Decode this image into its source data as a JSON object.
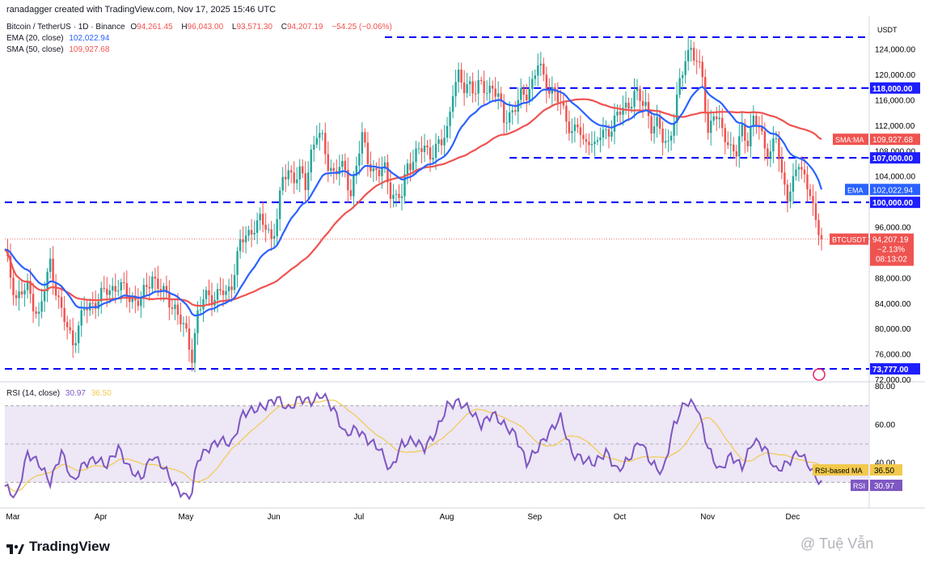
{
  "header": {
    "created_by": "ranadagger created with TradingView.com, Nov 17, 2025 15:46 UTC"
  },
  "legend": {
    "symbol": "Bitcoin / TetherUS · 1D · Binance",
    "ohlc": {
      "O": "94,261.45",
      "H": "96,043.00",
      "L": "93,571.30",
      "C": "94,207.19"
    },
    "change": "−54.25 (−0.06%)",
    "ema_label": "EMA (20, close)",
    "ema_value": "102,022.94",
    "sma_label": "SMA (50, close)",
    "sma_value": "109,927.68",
    "rsi_label": "RSI (14, close)",
    "rsi_value": "30.97",
    "rsi_ma_value": "36.50"
  },
  "colors": {
    "up": "#26a69a",
    "down": "#ef5350",
    "ema": "#2962ff",
    "sma": "#ef5350",
    "rsi": "#7e57c2",
    "rsi_ma": "#f2c94c",
    "level_lines": "#0000ff",
    "rsi_band": "#ede7f6"
  },
  "chart_data": [
    {
      "type": "candlestick",
      "title": "Bitcoin / TetherUS · 1D · Binance",
      "currency_label": "USDT",
      "ylim": [
        72000,
        126000
      ],
      "y_ticks": [
        "124,000.00",
        "120,000.00",
        "116,000.00",
        "112,000.00",
        "108,000.00",
        "104,000.00",
        "96,000.00",
        "88,000.00",
        "84,000.00",
        "80,000.00",
        "76,000.00",
        "72,000.00"
      ],
      "x_labels": [
        "Mar",
        "Apr",
        "May",
        "Jun",
        "Jul",
        "Aug",
        "Sep",
        "Oct",
        "Nov",
        "Dec"
      ],
      "horizontal_levels": [
        {
          "value": 126000,
          "label": "",
          "x_from": "mid-Jul"
        },
        {
          "value": 118000,
          "label": "118,000.00",
          "x_from": "late-Aug"
        },
        {
          "value": 107000,
          "label": "107,000.00",
          "x_from": "late-Aug"
        },
        {
          "value": 100000,
          "label": "100,000.00",
          "x_from": "start"
        },
        {
          "value": 73777,
          "label": "73,777.00",
          "x_from": "start"
        }
      ],
      "price_labels": [
        {
          "name": "SMA:MA",
          "value": "109,927.68",
          "y": 109927.68
        },
        {
          "name": "EMA",
          "value": "102,022.94",
          "y": 102022.94
        },
        {
          "name": "BTCUSDT",
          "value": "94,207.19",
          "change": "−2.13%",
          "countdown": "08:13:02",
          "y": 94207.19
        }
      ],
      "series": [
        {
          "name": "BTCUSDT",
          "kind": "candles",
          "close_path": [
            [
              0,
              92000
            ],
            [
              4,
              85000
            ],
            [
              8,
              86500
            ],
            [
              12,
              82000
            ],
            [
              16,
              90500
            ],
            [
              20,
              82500
            ],
            [
              24,
              78000
            ],
            [
              28,
              83000
            ],
            [
              32,
              84500
            ],
            [
              36,
              86000
            ],
            [
              40,
              87000
            ],
            [
              44,
              85000
            ],
            [
              48,
              84500
            ],
            [
              52,
              88500
            ],
            [
              56,
              85500
            ],
            [
              60,
              83500
            ],
            [
              64,
              79000
            ],
            [
              66,
              76000
            ],
            [
              68,
              82500
            ],
            [
              70,
              84500
            ],
            [
              72,
              85500
            ],
            [
              74,
              85000
            ],
            [
              76,
              86000
            ],
            [
              78,
              85200
            ],
            [
              80,
              87500
            ],
            [
              83,
              93500
            ],
            [
              86,
              95000
            ],
            [
              88,
              96500
            ],
            [
              90,
              97000
            ],
            [
              92,
              96000
            ],
            [
              94,
              94500
            ],
            [
              96,
              97500
            ],
            [
              98,
              103500
            ],
            [
              100,
              105000
            ],
            [
              102,
              104000
            ],
            [
              104,
              104500
            ],
            [
              106,
              102500
            ],
            [
              108,
              108000
            ],
            [
              110,
              111000
            ],
            [
              112,
              109500
            ],
            [
              114,
              106000
            ],
            [
              116,
              104800
            ],
            [
              118,
              105500
            ],
            [
              120,
              104700
            ],
            [
              122,
              101500
            ],
            [
              124,
              106000
            ],
            [
              126,
              110000
            ],
            [
              128,
              107000
            ],
            [
              130,
              105000
            ],
            [
              132,
              104500
            ],
            [
              134,
              105200
            ],
            [
              136,
              102000
            ],
            [
              138,
              100500
            ],
            [
              140,
              101000
            ],
            [
              142,
              106000
            ],
            [
              144,
              107000
            ],
            [
              146,
              108000
            ],
            [
              148,
              108500
            ],
            [
              150,
              107800
            ],
            [
              152,
              108500
            ],
            [
              154,
              109200
            ],
            [
              156,
              111500
            ],
            [
              158,
              118000
            ],
            [
              160,
              119500
            ],
            [
              162,
              117800
            ],
            [
              164,
              119000
            ],
            [
              166,
              117500
            ],
            [
              168,
              118300
            ],
            [
              170,
              117600
            ],
            [
              172,
              118500
            ],
            [
              174,
              116200
            ],
            [
              176,
              113000
            ],
            [
              178,
              114000
            ],
            [
              180,
              115000
            ],
            [
              182,
              116500
            ],
            [
              184,
              117300
            ],
            [
              186,
              119000
            ],
            [
              188,
              121700
            ],
            [
              190,
              119500
            ],
            [
              192,
              118000
            ],
            [
              194,
              117200
            ],
            [
              196,
              115000
            ],
            [
              198,
              113500
            ],
            [
              200,
              111000
            ],
            [
              202,
              112000
            ],
            [
              204,
              109000
            ],
            [
              206,
              110500
            ],
            [
              208,
              108500
            ],
            [
              210,
              110500
            ],
            [
              212,
              111200
            ],
            [
              214,
              112000
            ],
            [
              216,
              113400
            ],
            [
              218,
              114900
            ],
            [
              220,
              115500
            ],
            [
              222,
              117000
            ],
            [
              224,
              116000
            ],
            [
              226,
              115500
            ],
            [
              228,
              112000
            ],
            [
              230,
              112000
            ],
            [
              232,
              110200
            ],
            [
              234,
              109500
            ],
            [
              236,
              113000
            ],
            [
              238,
              118500
            ],
            [
              240,
              123000
            ],
            [
              242,
              124500
            ],
            [
              244,
              121500
            ],
            [
              246,
              120000
            ],
            [
              248,
              111000
            ],
            [
              250,
              114000
            ],
            [
              252,
              112000
            ],
            [
              254,
              110800
            ],
            [
              256,
              108500
            ],
            [
              258,
              107500
            ],
            [
              260,
              111500
            ],
            [
              262,
              110000
            ],
            [
              264,
              113000
            ],
            [
              266,
              111500
            ],
            [
              268,
              109000
            ],
            [
              270,
              108000
            ],
            [
              272,
              110000
            ],
            [
              274,
              104000
            ],
            [
              276,
              101500
            ],
            [
              278,
              103000
            ],
            [
              280,
              106000
            ],
            [
              282,
              104000
            ],
            [
              284,
              102000
            ],
            [
              286,
              96000
            ],
            [
              288,
              94200
            ]
          ]
        },
        {
          "name": "EMA",
          "value": "102,022.94"
        },
        {
          "name": "SMA",
          "value": "109,927.68"
        }
      ]
    },
    {
      "type": "line",
      "title": "RSI (14, close)",
      "ylim": [
        20,
        80
      ],
      "y_ticks": [
        "80.00",
        "60.00",
        "40.00"
      ],
      "bands": {
        "upper": 70,
        "middle": 50,
        "lower": 30
      },
      "price_labels": [
        {
          "name": "RSI-based MA",
          "value": "36.50"
        },
        {
          "name": "RSI",
          "value": "30.97"
        }
      ],
      "series": [
        {
          "name": "RSI",
          "path": [
            [
              0,
              28
            ],
            [
              4,
              22
            ],
            [
              8,
              45
            ],
            [
              12,
              40
            ],
            [
              16,
              30
            ],
            [
              20,
              46
            ],
            [
              24,
              30
            ],
            [
              28,
              40
            ],
            [
              32,
              42
            ],
            [
              36,
              39
            ],
            [
              40,
              48
            ],
            [
              44,
              37
            ],
            [
              48,
              32
            ],
            [
              52,
              44
            ],
            [
              56,
              38
            ],
            [
              60,
              28
            ],
            [
              64,
              22
            ],
            [
              66,
              25
            ],
            [
              68,
              42
            ],
            [
              72,
              48
            ],
            [
              76,
              52
            ],
            [
              80,
              50
            ],
            [
              84,
              66
            ],
            [
              88,
              68
            ],
            [
              92,
              70
            ],
            [
              96,
              74
            ],
            [
              100,
              68
            ],
            [
              104,
              74
            ],
            [
              108,
              72
            ],
            [
              112,
              76
            ],
            [
              116,
              68
            ],
            [
              120,
              55
            ],
            [
              124,
              58
            ],
            [
              128,
              52
            ],
            [
              132,
              48
            ],
            [
              136,
              36
            ],
            [
              140,
              50
            ],
            [
              144,
              52
            ],
            [
              148,
              48
            ],
            [
              152,
              56
            ],
            [
              156,
              70
            ],
            [
              160,
              72
            ],
            [
              164,
              68
            ],
            [
              168,
              60
            ],
            [
              172,
              66
            ],
            [
              176,
              60
            ],
            [
              180,
              55
            ],
            [
              184,
              40
            ],
            [
              188,
              48
            ],
            [
              192,
              56
            ],
            [
              196,
              64
            ],
            [
              200,
              45
            ],
            [
              204,
              42
            ],
            [
              208,
              40
            ],
            [
              212,
              46
            ],
            [
              216,
              36
            ],
            [
              220,
              42
            ],
            [
              224,
              52
            ],
            [
              228,
              40
            ],
            [
              232,
              35
            ],
            [
              236,
              60
            ],
            [
              240,
              72
            ],
            [
              244,
              70
            ],
            [
              248,
              48
            ],
            [
              252,
              36
            ],
            [
              256,
              44
            ],
            [
              260,
              38
            ],
            [
              264,
              52
            ],
            [
              268,
              48
            ],
            [
              272,
              36
            ],
            [
              276,
              40
            ],
            [
              280,
              46
            ],
            [
              284,
              38
            ],
            [
              286,
              32
            ],
            [
              288,
              31
            ]
          ]
        },
        {
          "name": "RSI-based MA",
          "value": "36.50"
        }
      ]
    }
  ],
  "footer": {
    "brand": "TradingView",
    "watermark": "@ Tuệ Vẫn"
  }
}
